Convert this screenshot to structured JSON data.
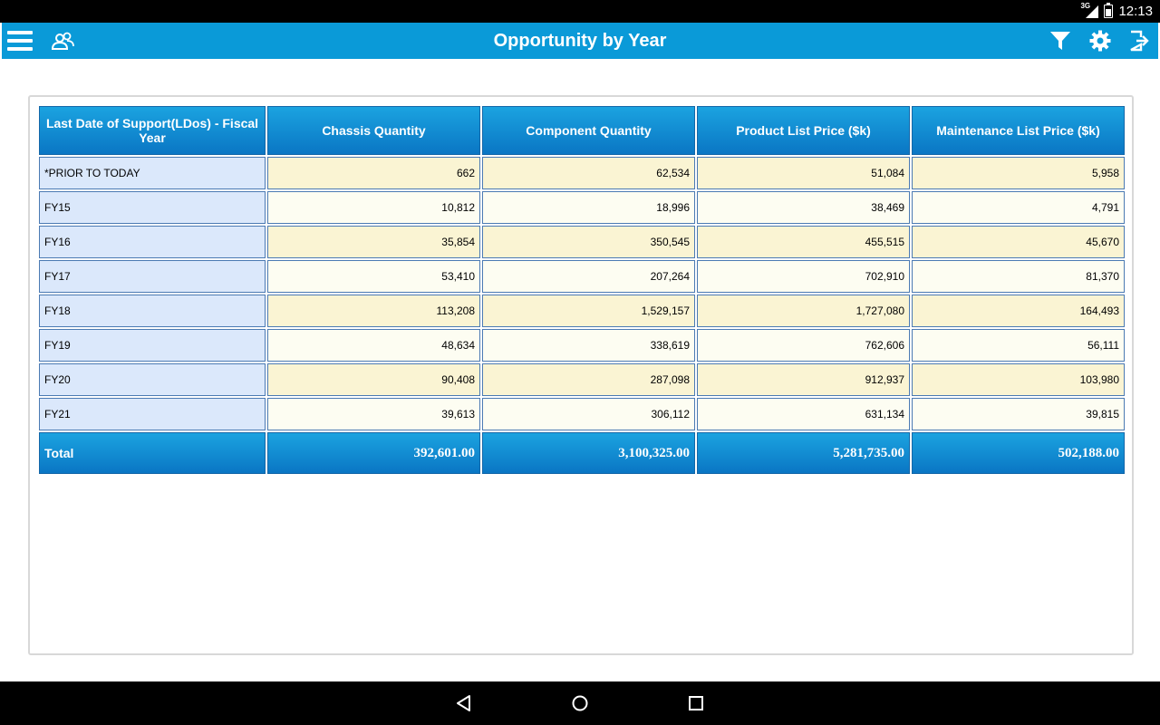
{
  "status_bar": {
    "network": "3G",
    "time": "12:13"
  },
  "app_bar": {
    "title": "Opportunity by Year",
    "icons": {
      "menu": "hamburger-menu-icon",
      "contacts": "user-group-icon",
      "filter": "filter-icon",
      "settings": "gear-icon",
      "logout": "logout-icon"
    },
    "accent_color": "#0a9ad8"
  },
  "table": {
    "headers": [
      "Last Date of Support(LDos) - Fiscal Year",
      "Chassis Quantity",
      "Component Quantity",
      "Product List Price ($k)",
      "Maintenance List Price ($k)"
    ],
    "rows": [
      [
        "*PRIOR TO TODAY",
        "662",
        "62,534",
        "51,084",
        "5,958"
      ],
      [
        "FY15",
        "10,812",
        "18,996",
        "38,469",
        "4,791"
      ],
      [
        "FY16",
        "35,854",
        "350,545",
        "455,515",
        "45,670"
      ],
      [
        "FY17",
        "53,410",
        "207,264",
        "702,910",
        "81,370"
      ],
      [
        "FY18",
        "113,208",
        "1,529,157",
        "1,727,080",
        "164,493"
      ],
      [
        "FY19",
        "48,634",
        "338,619",
        "762,606",
        "56,111"
      ],
      [
        "FY20",
        "90,408",
        "287,098",
        "912,937",
        "103,980"
      ],
      [
        "FY21",
        "39,613",
        "306,112",
        "631,134",
        "39,815"
      ]
    ],
    "total": [
      "Total",
      "392,601.00",
      "3,100,325.00",
      "5,281,735.00",
      "502,188.00"
    ]
  },
  "nav_bar": {
    "icons": [
      "back-icon",
      "home-icon",
      "recent-apps-icon"
    ]
  }
}
